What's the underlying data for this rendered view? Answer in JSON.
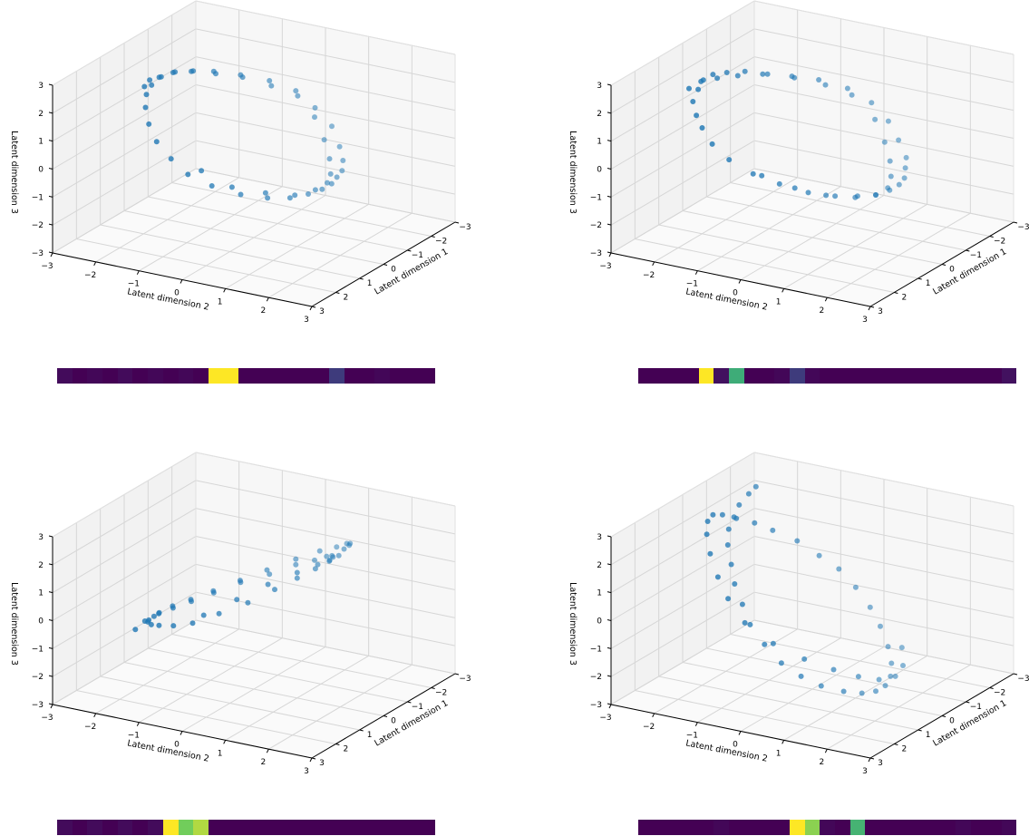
{
  "colors": {
    "point": "#1f77b4",
    "pane_side": "#f2f2f2",
    "pane_back": "#f7f7f7",
    "pane_floor": "#fafafa",
    "grid": "#d6d6d6",
    "axis": "#000000"
  },
  "chart_data": [
    {
      "type": "scatter",
      "projection": "3d",
      "xlabel": "Latent dimension 1",
      "ylabel": "Latent dimension 2",
      "zlabel": "Latent dimension 3",
      "xlim": [
        -3,
        3
      ],
      "ylim": [
        -3,
        3
      ],
      "zlim": [
        -3,
        3
      ],
      "ticks": [
        "−3",
        "−2",
        "−1",
        "0",
        "1",
        "2",
        "3"
      ],
      "grid": true,
      "description_shape": "ring",
      "x": [
        0.6,
        0.2,
        -0.2,
        -0.6,
        -1.0,
        -1.4,
        -1.8,
        -2.1,
        -2.3,
        -2.2,
        -2.0,
        -1.6,
        -1.2,
        -0.8,
        -0.4,
        0.0,
        0.4,
        0.8,
        1.2,
        1.6,
        2.0,
        2.3,
        2.4,
        2.2,
        1.9,
        1.5,
        1.1,
        0.7,
        0.3,
        -0.1,
        -0.5,
        -0.9,
        -1.3,
        -1.7,
        -2.0,
        -2.2,
        -2.0,
        -1.5,
        -1.0,
        -0.5,
        0.0,
        0.5,
        1.0,
        1.5,
        2.0,
        2.2
      ],
      "y": [
        -2.2,
        -2.3,
        -2.3,
        -2.2,
        -2.0,
        -1.7,
        -1.3,
        -0.8,
        -0.3,
        0.2,
        0.7,
        1.1,
        1.4,
        1.6,
        1.7,
        1.8,
        1.8,
        1.7,
        1.5,
        1.2,
        0.8,
        0.3,
        -0.2,
        -0.7,
        -1.2,
        -1.6,
        -1.9,
        -2.1,
        -2.2,
        -2.2,
        -2.1,
        -1.9,
        -1.6,
        -1.2,
        -0.7,
        -0.2,
        0.3,
        0.8,
        1.2,
        1.5,
        1.7,
        1.7,
        1.5,
        1.1,
        0.6,
        0.0
      ],
      "z": [
        2.0,
        2.0,
        1.9,
        1.9,
        1.8,
        1.7,
        1.5,
        1.3,
        1.0,
        0.6,
        0.2,
        -0.2,
        -0.4,
        -0.5,
        -0.5,
        -0.5,
        -0.5,
        -0.5,
        -0.5,
        -0.4,
        -0.2,
        0.1,
        0.4,
        0.7,
        1.0,
        1.3,
        1.6,
        1.8,
        1.9,
        2.0,
        2.0,
        1.9,
        1.7,
        1.5,
        1.2,
        0.9,
        0.4,
        0.0,
        -0.3,
        -0.5,
        -0.5,
        -0.5,
        -0.5,
        -0.3,
        0.0,
        0.5
      ]
    },
    {
      "type": "scatter",
      "projection": "3d",
      "xlabel": "Latent dimension 1",
      "ylabel": "Latent dimension 2",
      "zlabel": "Latent dimension 3",
      "xlim": [
        -3,
        3
      ],
      "ylim": [
        -3,
        3
      ],
      "zlim": [
        -3,
        3
      ],
      "ticks": [
        "−3",
        "−2",
        "−1",
        "0",
        "1",
        "2",
        "3"
      ],
      "grid": true,
      "description_shape": "ring",
      "x": [
        1.0,
        0.5,
        0.0,
        -0.5,
        -1.0,
        -1.5,
        -1.9,
        -2.2,
        -2.3,
        -2.1,
        -1.8,
        -1.4,
        -1.0,
        -0.6,
        -0.2,
        0.2,
        0.6,
        1.0,
        1.4,
        1.8,
        2.1,
        2.3,
        2.4,
        2.2,
        1.9,
        1.6,
        1.2,
        0.8,
        0.4,
        0.0,
        -0.4,
        -0.8,
        -1.2,
        -1.6,
        -2.0,
        -2.2,
        -1.9,
        -1.4,
        -0.9,
        -0.4,
        0.1,
        0.6,
        1.1,
        1.6,
        2.0,
        2.3
      ],
      "y": [
        -2.3,
        -2.3,
        -2.2,
        -2.0,
        -1.7,
        -1.3,
        -0.9,
        -0.4,
        0.1,
        0.6,
        1.0,
        1.4,
        1.6,
        1.8,
        1.9,
        1.9,
        1.8,
        1.6,
        1.3,
        0.9,
        0.4,
        -0.1,
        -0.6,
        -1.1,
        -1.5,
        -1.8,
        -2.1,
        -2.2,
        -2.3,
        -2.3,
        -2.2,
        -2.0,
        -1.7,
        -1.3,
        -0.8,
        -0.3,
        0.4,
        0.9,
        1.3,
        1.6,
        1.8,
        1.8,
        1.6,
        1.2,
        0.7,
        0.1
      ],
      "z": [
        2.1,
        2.1,
        2.0,
        1.9,
        1.8,
        1.6,
        1.4,
        1.1,
        0.7,
        0.3,
        -0.1,
        -0.4,
        -0.5,
        -0.6,
        -0.6,
        -0.6,
        -0.6,
        -0.5,
        -0.4,
        -0.2,
        0.1,
        0.4,
        0.8,
        1.1,
        1.4,
        1.6,
        1.8,
        2.0,
        2.1,
        2.1,
        2.0,
        1.9,
        1.7,
        1.5,
        1.2,
        0.9,
        0.4,
        0.0,
        -0.3,
        -0.5,
        -0.6,
        -0.6,
        -0.5,
        -0.3,
        0.0,
        0.4
      ]
    },
    {
      "type": "scatter",
      "projection": "3d",
      "xlabel": "Latent dimension 1",
      "ylabel": "Latent dimension 2",
      "zlabel": "Latent dimension 3",
      "xlim": [
        -3,
        3
      ],
      "ylim": [
        -3,
        3
      ],
      "zlim": [
        -3,
        3
      ],
      "ticks": [
        "−3",
        "−2",
        "−1",
        "0",
        "1",
        "2",
        "3"
      ],
      "grid": true,
      "description_shape": "ring",
      "x": [
        0.8,
        0.4,
        0.0,
        -0.4,
        -0.8,
        -1.2,
        -1.6,
        -2.0,
        -2.3,
        -2.4,
        -2.2,
        -1.9,
        -1.5,
        -1.1,
        -0.7,
        -0.3,
        0.1,
        0.5,
        0.9,
        1.3,
        1.7,
        2.0,
        2.2,
        2.1,
        1.8,
        1.4,
        1.0,
        0.6,
        0.2,
        -0.2,
        -0.6,
        -1.0,
        -1.4,
        -1.8,
        -2.1,
        -2.3,
        -2.0,
        -1.6,
        -1.1,
        -0.6,
        -0.1,
        0.4,
        0.9,
        1.4,
        1.8,
        2.1
      ],
      "y": [
        -2.3,
        -2.3,
        -2.2,
        -2.1,
        -1.9,
        -1.6,
        -1.2,
        -0.8,
        -0.3,
        0.2,
        0.7,
        1.1,
        1.4,
        1.6,
        1.7,
        1.8,
        1.8,
        1.7,
        1.5,
        1.2,
        0.8,
        0.3,
        -0.2,
        -0.7,
        -1.2,
        -1.6,
        -1.9,
        -2.1,
        -2.2,
        -2.3,
        -2.2,
        -2.0,
        -1.7,
        -1.3,
        -0.8,
        -0.3,
        0.3,
        0.8,
        1.2,
        1.5,
        1.7,
        1.7,
        1.5,
        1.1,
        0.6,
        0.0
      ],
      "z": [
        -1.2,
        -1.1,
        -1.0,
        -0.9,
        -0.8,
        -0.6,
        -0.3,
        0.0,
        0.4,
        0.8,
        1.2,
        1.6,
        1.9,
        2.1,
        2.2,
        2.2,
        2.2,
        2.1,
        1.9,
        1.6,
        1.2,
        0.8,
        0.4,
        0.1,
        -0.2,
        -0.5,
        -0.7,
        -0.9,
        -1.0,
        -1.1,
        -1.1,
        -1.0,
        -0.8,
        -0.5,
        -0.2,
        0.2,
        0.7,
        1.2,
        1.6,
        1.9,
        2.1,
        2.2,
        2.1,
        1.8,
        1.3,
        0.7
      ]
    },
    {
      "type": "scatter",
      "projection": "3d",
      "xlabel": "Latent dimension 1",
      "ylabel": "Latent dimension 2",
      "zlabel": "Latent dimension 3",
      "xlim": [
        -3,
        3
      ],
      "ylim": [
        -3,
        3
      ],
      "zlim": [
        -3,
        3
      ],
      "ticks": [
        "−3",
        "−2",
        "−1",
        "0",
        "1",
        "2",
        "3"
      ],
      "grid": true,
      "description_shape": "ring",
      "x": [
        -1.8,
        -1.5,
        -1.1,
        -0.7,
        -0.3,
        0.1,
        0.5,
        0.9,
        1.3,
        1.7,
        2.0,
        2.2,
        2.1,
        1.8,
        1.4,
        1.0,
        0.6,
        0.2,
        -0.2,
        -0.6,
        -1.0,
        -1.4,
        -1.7,
        -2.0,
        -2.2,
        -2.1,
        -1.9,
        -1.6,
        -1.2,
        -0.8,
        -0.4,
        0.0,
        0.4,
        0.8,
        1.2,
        1.6,
        1.9,
        2.1,
        2.0,
        1.6,
        1.1,
        0.6,
        0.1,
        -0.4,
        -0.9,
        -1.4
      ],
      "y": [
        -2.3,
        -2.3,
        -2.3,
        -2.2,
        -2.1,
        -1.9,
        -1.6,
        -1.3,
        -0.9,
        -0.5,
        0.0,
        0.5,
        0.9,
        1.2,
        1.5,
        1.7,
        1.8,
        1.8,
        1.7,
        1.5,
        1.2,
        0.8,
        0.4,
        -0.1,
        -0.6,
        -1.0,
        -1.4,
        -1.8,
        -2.0,
        -2.2,
        -2.3,
        -2.3,
        -2.2,
        -2.0,
        -1.7,
        -1.3,
        -0.9,
        -0.4,
        0.2,
        0.7,
        1.1,
        1.4,
        1.6,
        1.7,
        1.6,
        1.3
      ],
      "z": [
        2.6,
        2.5,
        2.3,
        2.1,
        1.9,
        1.6,
        1.2,
        0.8,
        0.4,
        0.0,
        -0.4,
        -0.8,
        -1.2,
        -1.6,
        -1.9,
        -2.1,
        -2.2,
        -2.2,
        -2.1,
        -1.9,
        -1.6,
        -1.2,
        -0.8,
        -0.4,
        0.0,
        0.4,
        0.9,
        1.3,
        1.7,
        2.0,
        2.3,
        2.5,
        2.5,
        2.3,
        1.9,
        1.4,
        0.9,
        0.3,
        -0.3,
        -0.9,
        -1.4,
        -1.8,
        -2.1,
        -2.2,
        -2.1,
        -1.8
      ]
    }
  ],
  "strips": [
    {
      "cells": [
        0.03,
        0.0,
        0.02,
        0.0,
        0.03,
        0.0,
        0.02,
        0.0,
        0.02,
        0.0,
        1.0,
        1.0,
        0.0,
        0.0,
        0.0,
        0.0,
        0.0,
        0.0,
        0.18,
        0.0,
        0.0,
        0.02,
        0.0,
        0.0,
        0.0
      ]
    },
    {
      "cells": [
        0.0,
        0.0,
        0.0,
        0.0,
        1.0,
        0.05,
        0.62,
        0.0,
        0.0,
        0.02,
        0.18,
        0.02,
        0.0,
        0.0,
        0.0,
        0.0,
        0.0,
        0.0,
        0.0,
        0.0,
        0.0,
        0.0,
        0.0,
        0.0,
        0.05
      ]
    },
    {
      "cells": [
        0.03,
        0.0,
        0.03,
        0.0,
        0.03,
        0.0,
        0.03,
        1.0,
        0.78,
        0.88,
        0.0,
        0.0,
        0.0,
        0.0,
        0.0,
        0.0,
        0.0,
        0.0,
        0.0,
        0.0,
        0.0,
        0.0,
        0.0,
        0.0,
        0.0
      ]
    },
    {
      "cells": [
        0.0,
        0.0,
        0.0,
        0.0,
        0.0,
        0.02,
        0.0,
        0.0,
        0.0,
        0.0,
        1.0,
        0.82,
        0.02,
        0.0,
        0.65,
        0.0,
        0.0,
        0.0,
        0.0,
        0.0,
        0.0,
        0.02,
        0.0,
        0.0,
        0.02
      ]
    }
  ]
}
